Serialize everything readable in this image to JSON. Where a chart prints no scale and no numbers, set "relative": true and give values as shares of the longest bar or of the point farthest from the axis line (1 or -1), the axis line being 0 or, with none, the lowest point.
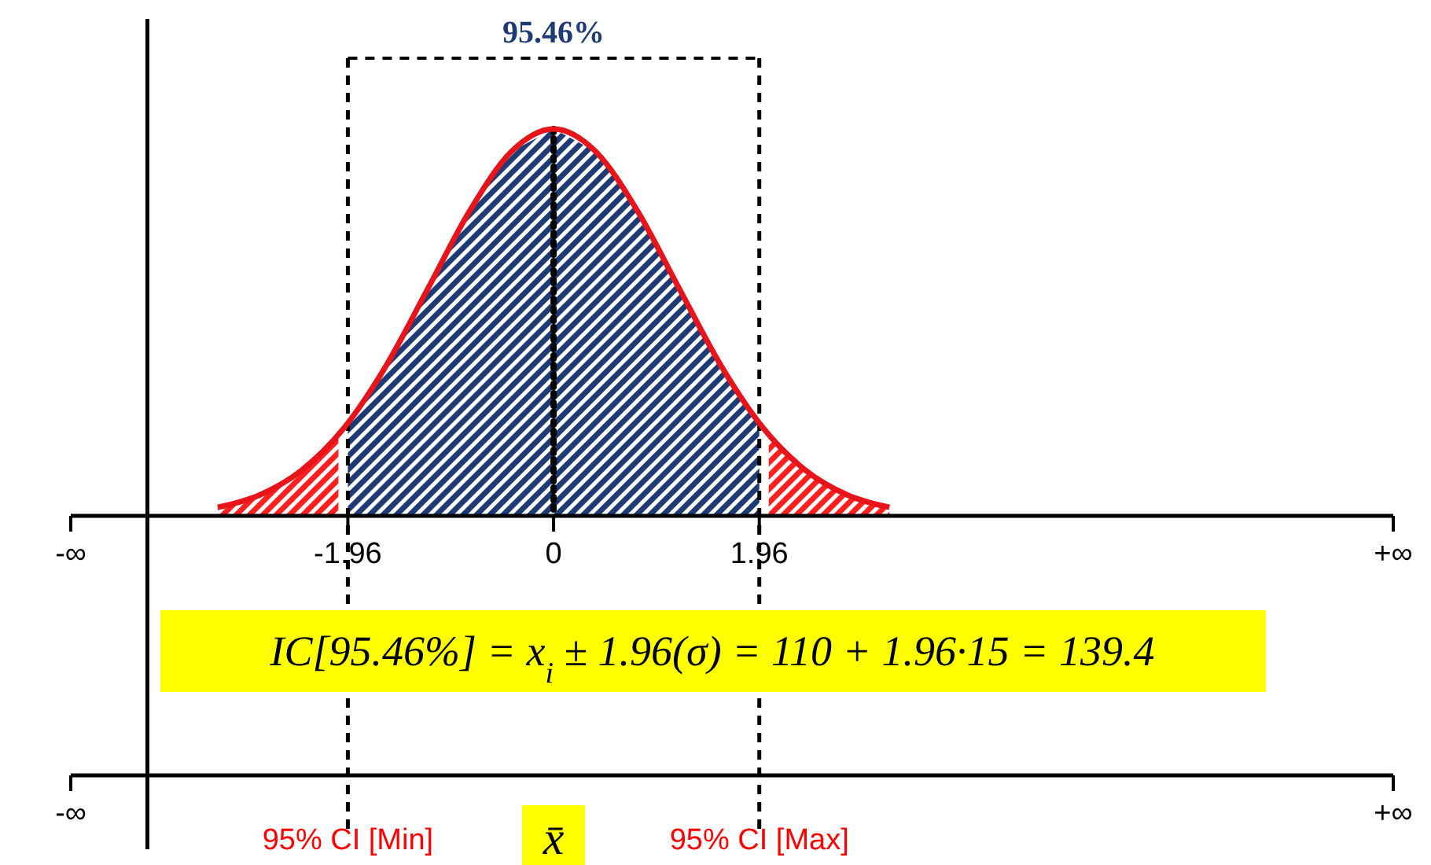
{
  "chart_data": {
    "type": "area",
    "relative": true,
    "tick_labels": "x",
    "title": "95.46%",
    "xlim": [
      -4.6,
      8.0
    ],
    "xticks": [
      {
        "value": -4.6,
        "label": "-∞"
      },
      -1.96,
      0,
      1.96,
      {
        "value": 8.0,
        "label": "+∞"
      }
    ],
    "series": [
      {
        "color": "#1f3b73",
        "x": [
          -1.96,
          -1.6,
          -1.2,
          -0.8,
          -0.4,
          0,
          0.4,
          0.8,
          1.2,
          1.6,
          1.96
        ],
        "values": [
          0.24,
          0.386,
          0.586,
          0.788,
          0.942,
          1,
          0.942,
          0.788,
          0.586,
          0.386,
          0.24
        ]
      },
      {
        "color": "#ff2020",
        "x": [
          -3.2,
          -2.8,
          -2.4,
          -2.05
        ],
        "values": [
          0.022,
          0.054,
          0.118,
          0.21
        ]
      },
      {
        "color": "#ff2020",
        "x": [
          2.05,
          2.4,
          2.8,
          3.2
        ],
        "values": [
          0.21,
          0.118,
          0.054,
          0.022
        ]
      },
      {
        "type": "line",
        "color": "#e8141b",
        "x": [
          -3.2,
          -2.8,
          -2.4,
          -2.0,
          -1.6,
          -1.2,
          -0.8,
          -0.4,
          0,
          0.4,
          0.8,
          1.2,
          1.6,
          2.0,
          2.4,
          2.8,
          3.2
        ],
        "values": [
          0.022,
          0.054,
          0.118,
          0.226,
          0.386,
          0.586,
          0.788,
          0.942,
          1,
          0.942,
          0.788,
          0.586,
          0.386,
          0.226,
          0.118,
          0.054,
          0.022
        ]
      }
    ],
    "ref_lines": [
      {
        "axis": "x",
        "value": -3.87,
        "label": null,
        "color": "#000000",
        "line_style": "solid"
      },
      {
        "axis": "x",
        "value": 0,
        "label": null,
        "color": "#000000",
        "line_style": "dotted"
      },
      {
        "axis": "x",
        "value": -1.96,
        "label": "95% CI [Min]",
        "color": "#000000",
        "line_style": "dashed"
      },
      {
        "axis": "x",
        "value": 1.96,
        "label": "95% CI [Max]",
        "color": "#000000",
        "line_style": "dashed"
      }
    ],
    "annotations": [
      "IC[95.46%] = x$_{i}$ ± 1.96(σ) = 110 + 1.96·15 = 139.4",
      "-∞",
      "+∞",
      "x̄"
    ]
  }
}
